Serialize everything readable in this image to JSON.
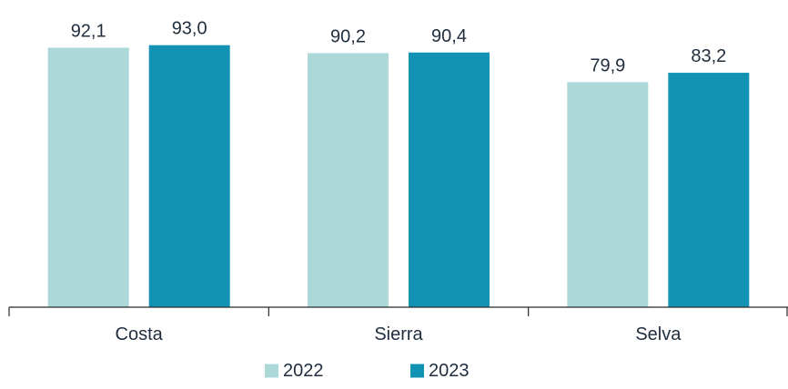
{
  "chart_data": {
    "type": "bar",
    "categories": [
      "Costa",
      "Sierra",
      "Selva"
    ],
    "series": [
      {
        "name": "2022",
        "values": [
          92.1,
          90.2,
          79.9
        ],
        "labels": [
          "92,1",
          "90,2",
          "79,9"
        ],
        "color": "#acd9d8"
      },
      {
        "name": "2023",
        "values": [
          93.0,
          90.4,
          83.2
        ],
        "labels": [
          "93,0",
          "90,4",
          "83,2"
        ],
        "color": "#1293b3"
      }
    ],
    "title": "",
    "xlabel": "",
    "ylabel": "",
    "ylim": [
      0,
      100
    ],
    "grid": false,
    "legend": "bottom-center"
  }
}
